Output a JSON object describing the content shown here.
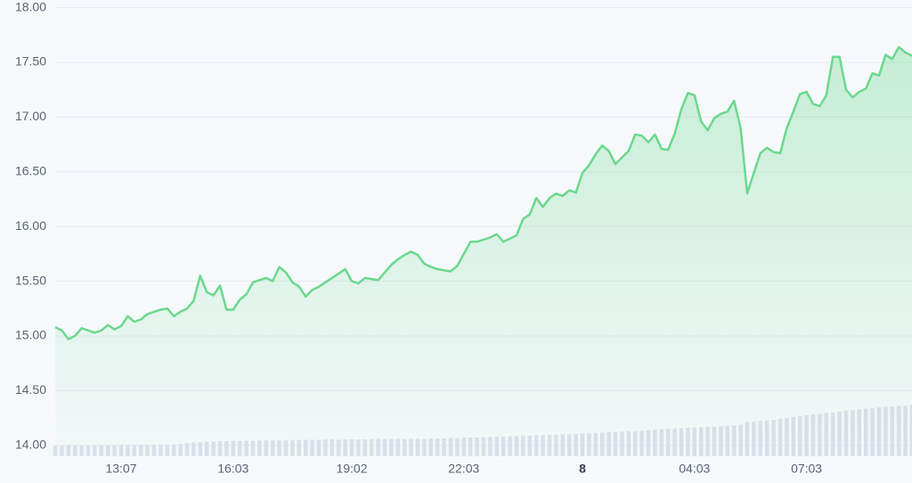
{
  "chart_data": {
    "type": "area",
    "categories": [
      null,
      null,
      null,
      null,
      null,
      null,
      null,
      null,
      null,
      null,
      "13:07",
      null,
      null,
      null,
      null,
      null,
      null,
      null,
      null,
      null,
      null,
      null,
      null,
      null,
      null,
      null,
      null,
      "16:03",
      null,
      null,
      null,
      null,
      null,
      null,
      null,
      null,
      null,
      null,
      null,
      null,
      null,
      null,
      null,
      null,
      null,
      "19:02",
      null,
      null,
      null,
      null,
      null,
      null,
      null,
      null,
      null,
      null,
      null,
      null,
      null,
      null,
      null,
      null,
      "22:03",
      null,
      null,
      null,
      null,
      null,
      null,
      null,
      null,
      null,
      null,
      null,
      null,
      null,
      null,
      null,
      null,
      null,
      "8",
      null,
      null,
      null,
      null,
      null,
      null,
      null,
      null,
      null,
      null,
      null,
      null,
      null,
      null,
      null,
      null,
      "04:03",
      null,
      null,
      null,
      null,
      null,
      null,
      null,
      null,
      null,
      null,
      null,
      null,
      null,
      null,
      null,
      null,
      "07:03",
      null,
      null,
      null,
      null,
      null,
      null,
      null,
      null,
      null,
      null,
      null,
      null,
      null,
      null,
      null,
      null
    ],
    "series": [
      {
        "color": "#6bd88d",
        "values": [
          15.08,
          15.05,
          14.97,
          15.0,
          15.07,
          15.05,
          15.03,
          15.05,
          15.1,
          15.06,
          15.09,
          15.18,
          15.13,
          15.15,
          15.2,
          15.22,
          15.24,
          15.25,
          15.18,
          15.22,
          15.25,
          15.32,
          15.55,
          15.4,
          15.37,
          15.46,
          15.24,
          15.24,
          15.33,
          15.38,
          15.49,
          15.51,
          15.53,
          15.5,
          15.63,
          15.58,
          15.49,
          15.45,
          15.36,
          15.42,
          15.45,
          15.49,
          15.53,
          15.57,
          15.61,
          15.5,
          15.48,
          15.53,
          15.52,
          15.51,
          15.58,
          15.65,
          15.7,
          15.74,
          15.77,
          15.74,
          15.66,
          15.63,
          15.61,
          15.6,
          15.59,
          15.64,
          15.75,
          15.86,
          15.86,
          15.88,
          15.9,
          15.93,
          15.86,
          15.89,
          15.92,
          16.07,
          16.11,
          16.26,
          16.18,
          16.26,
          16.3,
          16.28,
          16.33,
          16.31,
          16.49,
          16.56,
          16.66,
          16.74,
          16.69,
          16.57,
          16.63,
          16.69,
          16.84,
          16.83,
          16.77,
          16.84,
          16.71,
          16.7,
          16.85,
          17.07,
          17.22,
          17.2,
          16.96,
          16.88,
          16.99,
          17.03,
          17.05,
          17.15,
          16.9,
          16.3,
          16.49,
          16.67,
          16.72,
          16.68,
          16.67,
          16.9,
          17.05,
          17.21,
          17.23,
          17.12,
          17.1,
          17.2,
          17.55,
          17.55,
          17.25,
          17.18,
          17.23,
          17.26,
          17.4,
          17.38,
          17.57,
          17.53,
          17.64,
          17.59,
          17.56
        ]
      },
      {
        "type": "bar",
        "axis": "y2",
        "color": "#dde0ea",
        "values": [
          2.3,
          2.3,
          2.4,
          2.3,
          2.4,
          2.3,
          2.3,
          2.4,
          2.4,
          2.4,
          2.5,
          2.5,
          2.5,
          2.5,
          2.5,
          2.6,
          2.6,
          2.6,
          2.6,
          2.7,
          2.9,
          3.0,
          3.1,
          3.2,
          3.2,
          3.3,
          3.3,
          3.4,
          3.4,
          3.4,
          3.4,
          3.5,
          3.5,
          3.5,
          3.5,
          3.5,
          3.6,
          3.6,
          3.6,
          3.6,
          3.6,
          3.7,
          3.7,
          3.6,
          3.7,
          3.7,
          3.7,
          3.7,
          3.8,
          3.8,
          3.8,
          3.8,
          3.8,
          3.8,
          3.8,
          3.8,
          3.8,
          3.9,
          3.9,
          3.9,
          4.0,
          4.0,
          4.1,
          4.1,
          4.1,
          4.2,
          4.2,
          4.3,
          4.3,
          4.4,
          4.4,
          4.5,
          4.5,
          4.6,
          4.6,
          4.7,
          4.7,
          4.8,
          4.8,
          4.9,
          5.0,
          5.1,
          5.1,
          5.2,
          5.3,
          5.3,
          5.4,
          5.5,
          5.5,
          5.6,
          5.7,
          5.8,
          5.9,
          6.0,
          6.1,
          6.2,
          6.3,
          6.3,
          6.4,
          6.5,
          6.5,
          6.6,
          6.7,
          6.8,
          6.9,
          7.5,
          7.6,
          7.8,
          7.9,
          8.0,
          8.2,
          8.4,
          8.6,
          8.8,
          9.0,
          9.2,
          9.3,
          9.5,
          9.6,
          9.8,
          10.0,
          10.1,
          10.3,
          10.4,
          10.5,
          10.7,
          10.8,
          10.9,
          11.0,
          11.1,
          11.3
        ]
      }
    ],
    "ylim": [
      13.9,
      18.07
    ],
    "yticks": [
      {
        "value": 14,
        "label": "14.00"
      },
      {
        "value": 14.5,
        "label": "14.50"
      },
      {
        "value": 15,
        "label": "15.00"
      },
      {
        "value": 15.5,
        "label": "15.50"
      },
      {
        "value": 16,
        "label": "16.00"
      },
      {
        "value": 16.5,
        "label": "16.50"
      },
      {
        "value": 17,
        "label": "17.00"
      },
      {
        "value": 17.5,
        "label": "17.50"
      },
      {
        "value": 18,
        "label": "18.00"
      }
    ],
    "y2lim": [
      0,
      100
    ],
    "grid": true
  }
}
